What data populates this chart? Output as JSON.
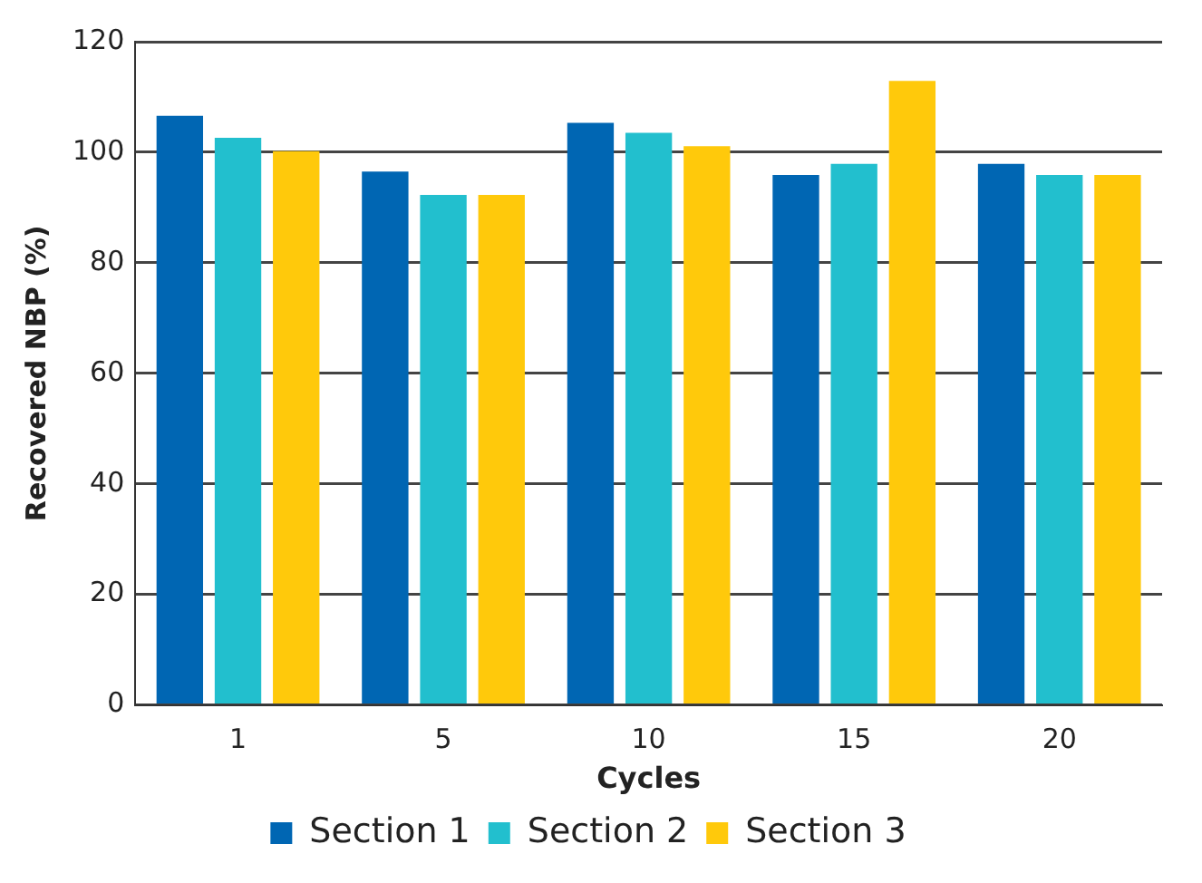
{
  "chart_data": {
    "type": "bar",
    "xlabel": "Cycles",
    "ylabel": "Recovered NBP (%)",
    "categories": [
      "1",
      "5",
      "10",
      "15",
      "20"
    ],
    "series": [
      {
        "name": "Section 1",
        "color": "#0066b3",
        "values": [
          106.6,
          96.5,
          105.3,
          95.9,
          97.9
        ]
      },
      {
        "name": "Section 2",
        "color": "#22bfce",
        "values": [
          102.6,
          92.3,
          103.5,
          97.9,
          95.9
        ]
      },
      {
        "name": "Section 3",
        "color": "#ffc90b",
        "values": [
          100.2,
          92.3,
          101.1,
          112.9,
          95.9
        ]
      }
    ],
    "ylim": [
      0,
      120
    ],
    "yticks": [
      0,
      20,
      40,
      60,
      80,
      100,
      120
    ],
    "grid": "y",
    "legend": "bottom"
  }
}
